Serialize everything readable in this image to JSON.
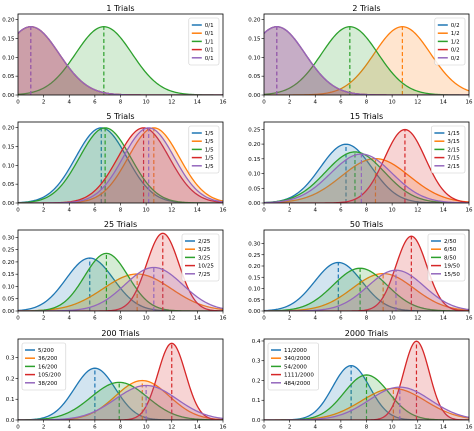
{
  "chart_data": [
    {
      "type": "area",
      "title": "1 Trials",
      "xlim": [
        0,
        16
      ],
      "ylim": [
        0,
        0.215
      ],
      "x_ticks": [
        "0",
        "2",
        "4",
        "6",
        "8",
        "10",
        "12",
        "14",
        "16"
      ],
      "y_ticks": [
        "0.00",
        "0.05",
        "0.10",
        "0.15",
        "0.20"
      ],
      "y_tick_values": [
        0,
        0.05,
        0.1,
        0.15,
        0.2
      ],
      "legend_position": "top-right",
      "series": [
        {
          "name": "0/1",
          "color": "#1f77b4",
          "mean": 1.0,
          "sd": 2.2
        },
        {
          "name": "0/1",
          "color": "#ff7f0e",
          "mean": 1.0,
          "sd": 2.2
        },
        {
          "name": "1/1",
          "color": "#2ca02c",
          "mean": 6.7,
          "sd": 2.2
        },
        {
          "name": "0/1",
          "color": "#d62728",
          "mean": 1.0,
          "sd": 2.2
        },
        {
          "name": "0/1",
          "color": "#9467bd",
          "mean": 1.0,
          "sd": 2.2
        }
      ]
    },
    {
      "type": "area",
      "title": "2 Trials",
      "xlim": [
        0,
        16
      ],
      "ylim": [
        0,
        0.215
      ],
      "x_ticks": [
        "0",
        "2",
        "4",
        "6",
        "8",
        "10",
        "12",
        "14",
        "16"
      ],
      "y_ticks": [
        "0.00",
        "0.05",
        "0.10",
        "0.15",
        "0.20"
      ],
      "y_tick_values": [
        0,
        0.05,
        0.1,
        0.15,
        0.2
      ],
      "legend_position": "top-right",
      "series": [
        {
          "name": "0/2",
          "color": "#1f77b4",
          "mean": 1.0,
          "sd": 2.2
        },
        {
          "name": "1/2",
          "color": "#ff7f0e",
          "mean": 10.8,
          "sd": 2.2
        },
        {
          "name": "1/2",
          "color": "#2ca02c",
          "mean": 6.7,
          "sd": 2.2
        },
        {
          "name": "0/2",
          "color": "#d62728",
          "mean": 1.0,
          "sd": 2.2
        },
        {
          "name": "0/2",
          "color": "#9467bd",
          "mean": 1.0,
          "sd": 2.2
        }
      ]
    },
    {
      "type": "area",
      "title": "5 Trials",
      "xlim": [
        0,
        16
      ],
      "ylim": [
        0,
        0.215
      ],
      "x_ticks": [
        "0",
        "2",
        "4",
        "6",
        "8",
        "10",
        "12",
        "14",
        "16"
      ],
      "y_ticks": [
        "0.00",
        "0.05",
        "0.10",
        "0.15",
        "0.20"
      ],
      "y_tick_values": [
        0,
        0.05,
        0.1,
        0.15,
        0.2
      ],
      "legend_position": "top-right",
      "series": [
        {
          "name": "1/5",
          "color": "#1f77b4",
          "mean": 6.5,
          "sd": 2.0
        },
        {
          "name": "1/5",
          "color": "#ff7f0e",
          "mean": 10.6,
          "sd": 2.0
        },
        {
          "name": "1/5",
          "color": "#2ca02c",
          "mean": 6.8,
          "sd": 2.0
        },
        {
          "name": "1/5",
          "color": "#d62728",
          "mean": 9.8,
          "sd": 2.0
        },
        {
          "name": "1/5",
          "color": "#9467bd",
          "mean": 10.2,
          "sd": 2.0
        }
      ]
    },
    {
      "type": "area",
      "title": "15 Trials",
      "xlim": [
        0,
        16
      ],
      "ylim": [
        0,
        0.275
      ],
      "x_ticks": [
        "0",
        "2",
        "4",
        "6",
        "8",
        "10",
        "12",
        "14",
        "16"
      ],
      "y_ticks": [
        "0.00",
        "0.05",
        "0.10",
        "0.15",
        "0.20",
        "0.25"
      ],
      "y_tick_values": [
        0,
        0.05,
        0.1,
        0.15,
        0.2,
        0.25
      ],
      "legend_position": "top-right",
      "series": [
        {
          "name": "1/15",
          "color": "#1f77b4",
          "mean": 6.4,
          "sd": 2.0
        },
        {
          "name": "3/15",
          "color": "#ff7f0e",
          "mean": 8.7,
          "sd": 2.65
        },
        {
          "name": "2/15",
          "color": "#2ca02c",
          "mean": 7.1,
          "sd": 2.3
        },
        {
          "name": "7/15",
          "color": "#d62728",
          "mean": 11.0,
          "sd": 1.6
        },
        {
          "name": "2/15",
          "color": "#9467bd",
          "mean": 7.6,
          "sd": 2.4
        }
      ]
    },
    {
      "type": "area",
      "title": "25 Trials",
      "xlim": [
        0,
        16
      ],
      "ylim": [
        0,
        0.33
      ],
      "x_ticks": [
        "0",
        "2",
        "4",
        "6",
        "8",
        "10",
        "12",
        "14",
        "16"
      ],
      "y_ticks": [
        "0.00",
        "0.05",
        "0.10",
        "0.15",
        "0.20",
        "0.25",
        "0.30"
      ],
      "y_tick_values": [
        0,
        0.05,
        0.1,
        0.15,
        0.2,
        0.25,
        0.3
      ],
      "legend_position": "top-right",
      "series": [
        {
          "name": "2/25",
          "color": "#1f77b4",
          "mean": 5.6,
          "sd": 1.85
        },
        {
          "name": "3/25",
          "color": "#ff7f0e",
          "mean": 9.3,
          "sd": 2.65
        },
        {
          "name": "3/25",
          "color": "#2ca02c",
          "mean": 6.9,
          "sd": 1.7
        },
        {
          "name": "10/25",
          "color": "#d62728",
          "mean": 11.3,
          "sd": 1.26
        },
        {
          "name": "7/25",
          "color": "#9467bd",
          "mean": 10.6,
          "sd": 2.25
        }
      ]
    },
    {
      "type": "area",
      "title": "50 Trials",
      "xlim": [
        0,
        16
      ],
      "ylim": [
        0,
        0.36
      ],
      "x_ticks": [
        "0",
        "2",
        "4",
        "6",
        "8",
        "10",
        "12",
        "14",
        "16"
      ],
      "y_ticks": [
        "0.00",
        "0.05",
        "0.10",
        "0.15",
        "0.20",
        "0.25",
        "0.30"
      ],
      "y_tick_values": [
        0,
        0.05,
        0.1,
        0.15,
        0.2,
        0.25,
        0.3
      ],
      "legend_position": "top-right",
      "series": [
        {
          "name": "2/50",
          "color": "#1f77b4",
          "mean": 5.8,
          "sd": 1.85
        },
        {
          "name": "6/50",
          "color": "#ff7f0e",
          "mean": 9.3,
          "sd": 2.4
        },
        {
          "name": "8/50",
          "color": "#2ca02c",
          "mean": 7.5,
          "sd": 2.1
        },
        {
          "name": "19/50",
          "color": "#d62728",
          "mean": 11.5,
          "sd": 1.2
        },
        {
          "name": "15/50",
          "color": "#9467bd",
          "mean": 10.3,
          "sd": 2.2
        }
      ]
    },
    {
      "type": "area",
      "title": "200 Trials",
      "xlim": [
        0,
        16
      ],
      "ylim": [
        0,
        0.39
      ],
      "x_ticks": [
        "0",
        "2",
        "4",
        "6",
        "8",
        "10",
        "12",
        "14",
        "16"
      ],
      "y_ticks": [
        "0.0",
        "0.1",
        "0.2",
        "0.3"
      ],
      "y_tick_values": [
        0,
        0.1,
        0.2,
        0.3
      ],
      "legend_position": "top-left",
      "series": [
        {
          "name": "5/200",
          "color": "#1f77b4",
          "mean": 6.0,
          "sd": 1.6
        },
        {
          "name": "36/200",
          "color": "#ff7f0e",
          "mean": 9.7,
          "sd": 2.1
        },
        {
          "name": "16/200",
          "color": "#2ca02c",
          "mean": 7.9,
          "sd": 2.2
        },
        {
          "name": "105/200",
          "color": "#d62728",
          "mean": 12.0,
          "sd": 1.08
        },
        {
          "name": "38/200",
          "color": "#9467bd",
          "mean": 10.0,
          "sd": 2.4
        }
      ]
    },
    {
      "type": "area",
      "title": "2000 Trials",
      "xlim": [
        0,
        16
      ],
      "ylim": [
        0,
        0.41
      ],
      "x_ticks": [
        "0",
        "2",
        "4",
        "6",
        "8",
        "10",
        "12",
        "14",
        "16"
      ],
      "y_ticks": [
        "0.0",
        "0.1",
        "0.2",
        "0.3",
        "0.4"
      ],
      "y_tick_values": [
        0,
        0.1,
        0.2,
        0.3,
        0.4
      ],
      "legend_position": "top-left",
      "series": [
        {
          "name": "11/2000",
          "color": "#1f77b4",
          "mean": 6.8,
          "sd": 1.45
        },
        {
          "name": "340/2000",
          "color": "#ff7f0e",
          "mean": 10.1,
          "sd": 2.5
        },
        {
          "name": "54/2000",
          "color": "#2ca02c",
          "mean": 8.0,
          "sd": 1.75
        },
        {
          "name": "1111/2000",
          "color": "#d62728",
          "mean": 11.9,
          "sd": 1.0
        },
        {
          "name": "484/2000",
          "color": "#9467bd",
          "mean": 10.6,
          "sd": 2.4
        }
      ]
    }
  ]
}
